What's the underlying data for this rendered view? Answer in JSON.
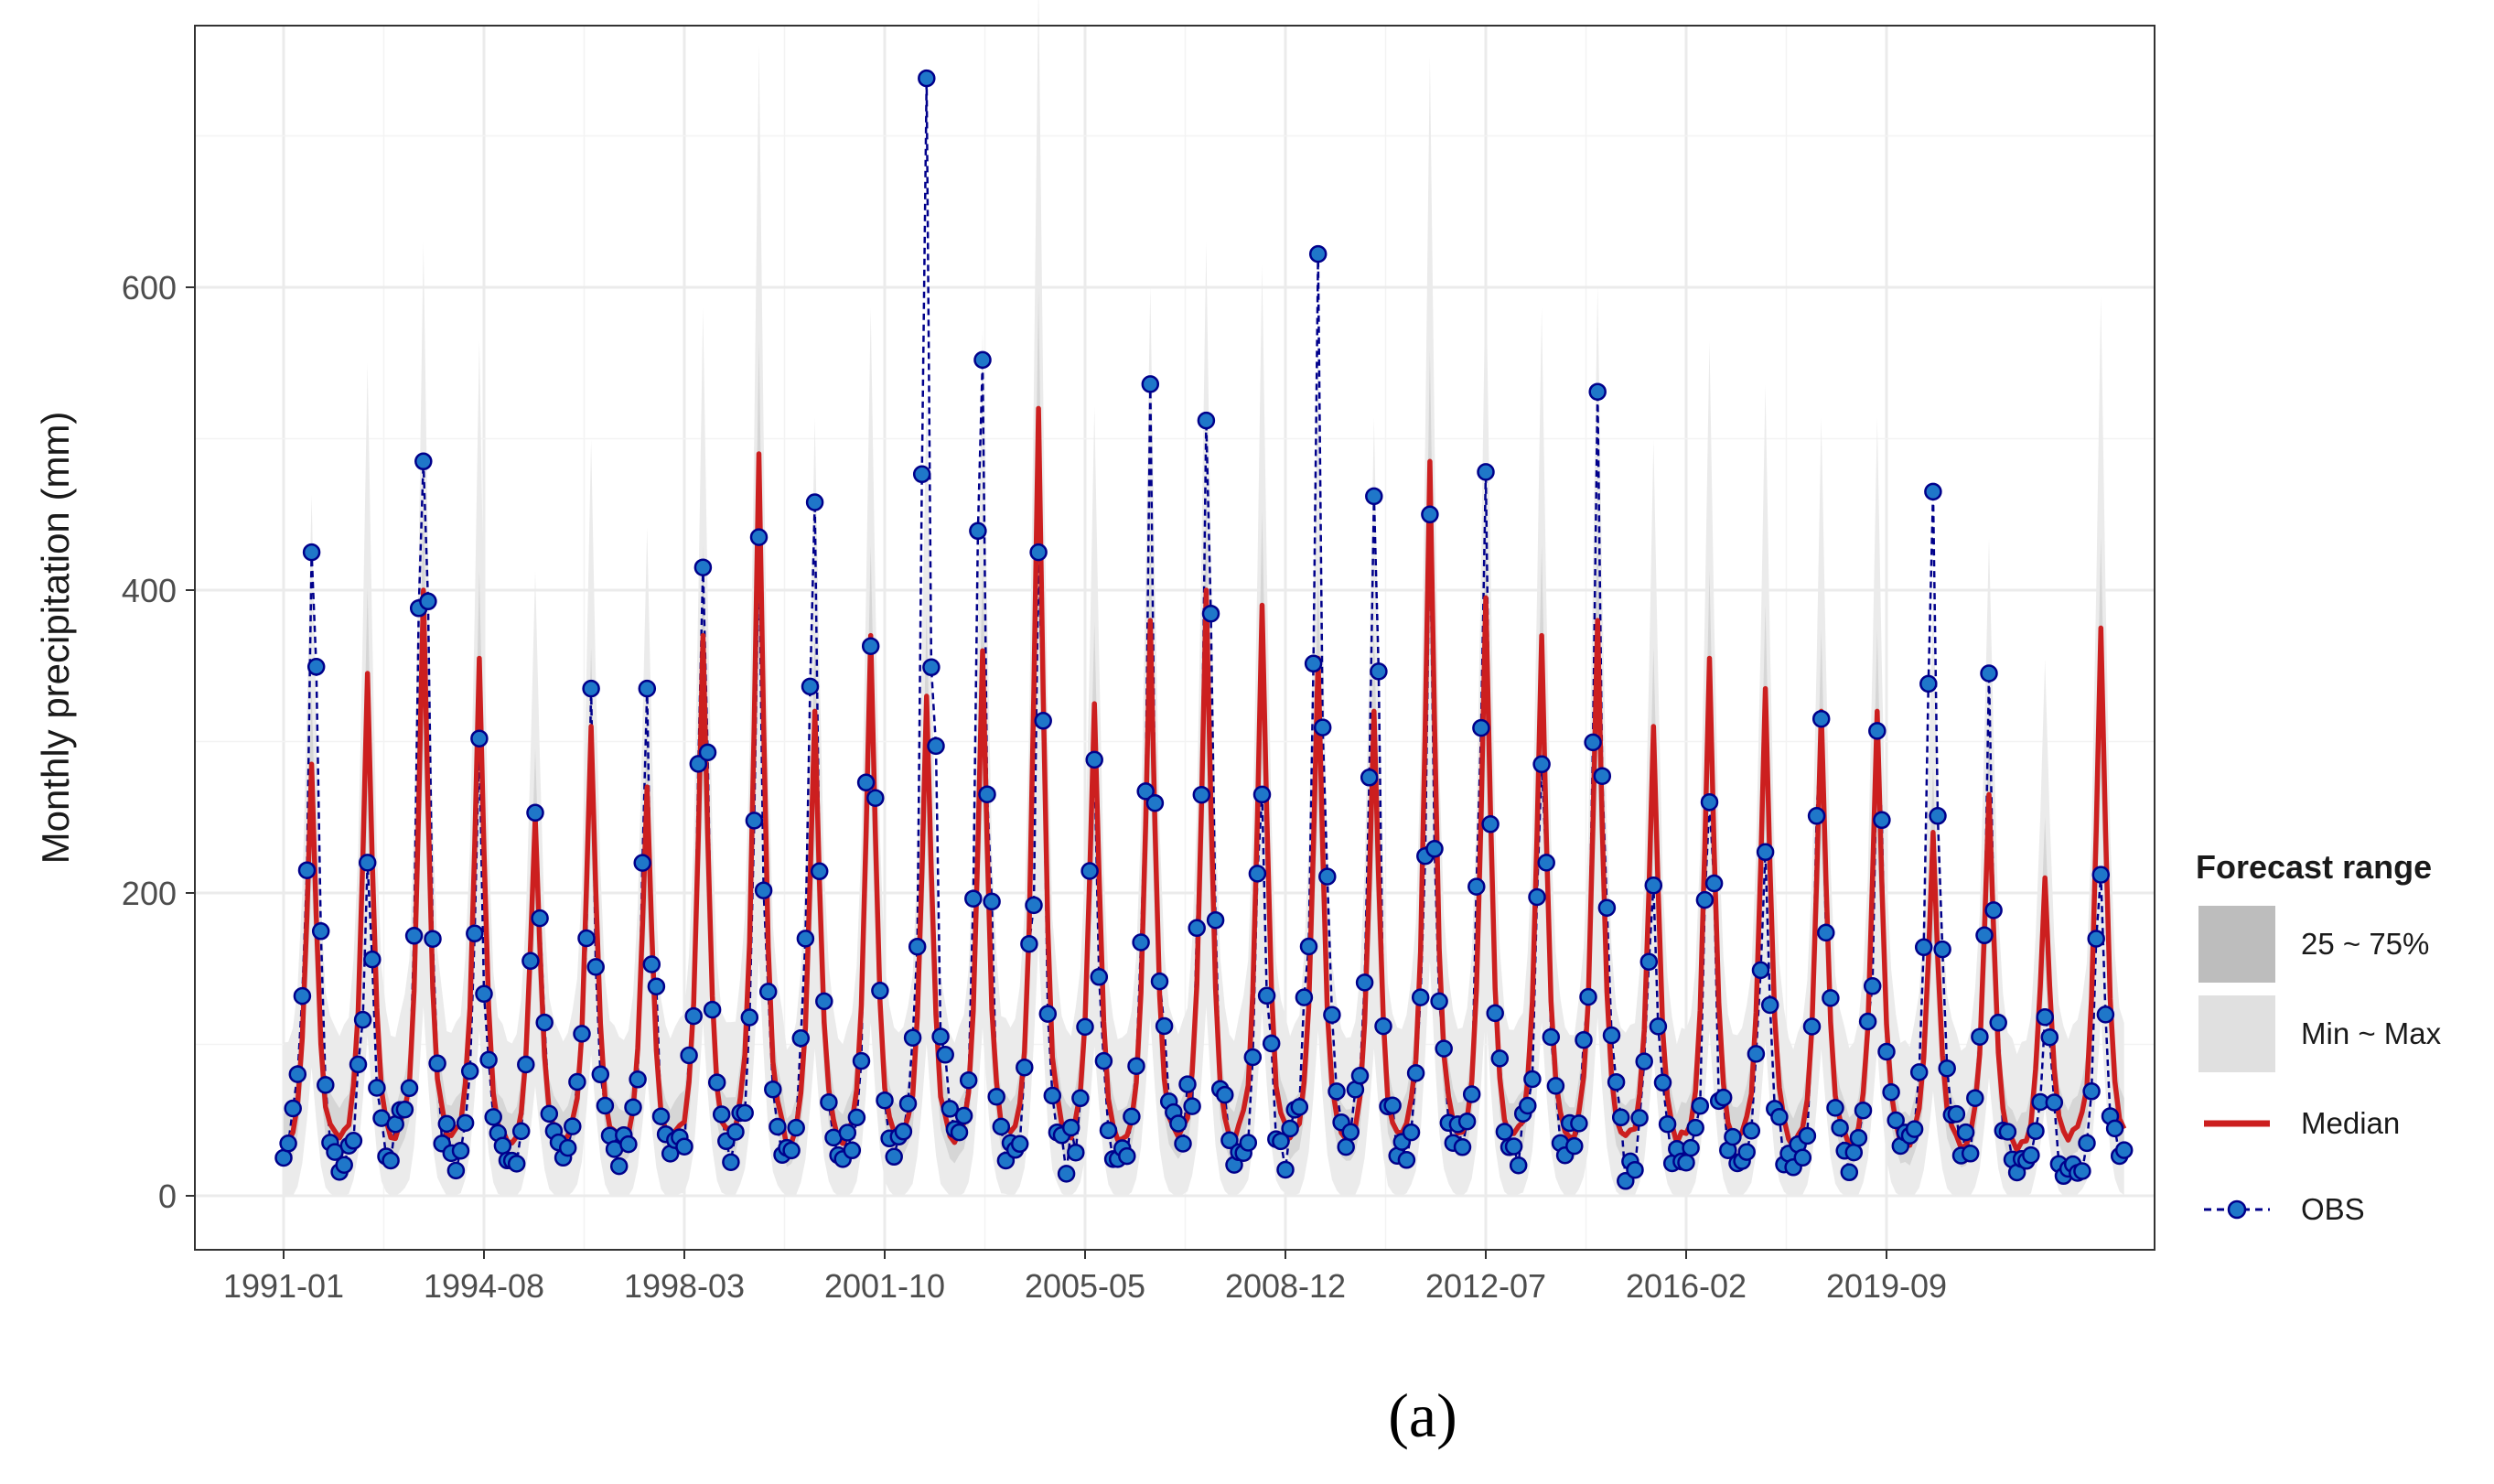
{
  "chart_data": {
    "type": "line",
    "ylabel": "Monthly precipitation (mm)",
    "xlabel": "",
    "caption": "(a)",
    "x_start": "1991-01",
    "x_end": "2023-12",
    "x_ticks": [
      "1991-01",
      "1994-08",
      "1998-03",
      "2001-10",
      "2005-05",
      "2008-12",
      "2012-07",
      "2016-02",
      "2019-09"
    ],
    "y_ticks": [
      0,
      200,
      400,
      600
    ],
    "ylim": [
      -35,
      775
    ],
    "grid": true,
    "legend": {
      "title": "Forecast range",
      "position": "right",
      "items": [
        {
          "label": "25 ~ 75%",
          "kind": "band",
          "color": "#bdbdbd"
        },
        {
          "label": "Min ~ Max",
          "kind": "band",
          "color": "#e0e0e0"
        },
        {
          "label": "Median",
          "kind": "line",
          "color": "#cc1f1f"
        },
        {
          "label": "OBS",
          "kind": "point-line",
          "color": "#00008b",
          "fill": "#1f77c9"
        }
      ]
    },
    "series": [
      {
        "name": "Min ~ Max",
        "type": "band",
        "color": "#ebebeb",
        "x": [
          "1991-01",
          "1991-02",
          "1991-03",
          "1991-04",
          "1991-05",
          "1991-06",
          "1991-07",
          "1991-08",
          "1991-09",
          "1991-10",
          "1991-11",
          "1991-12",
          "1993-07",
          "1994-08",
          "1998-01",
          "2002-07",
          "2005-01",
          "2008-07",
          "2012-02",
          "2015-07",
          "2017-08",
          "2020-06",
          "2023-07",
          "2023-12"
        ],
        "values": [
          120,
          180,
          260,
          360,
          420,
          410,
          380,
          300,
          200,
          140,
          110,
          100,
          560,
          580,
          590,
          850,
          610,
          640,
          570,
          610,
          720,
          450,
          560,
          200
        ]
      },
      {
        "name": "25 ~ 75%",
        "type": "band",
        "color": "#d6d6d6",
        "x": [
          "1992-07",
          "1996-07",
          "2002-07",
          "2004-07",
          "2008-07",
          "2013-07",
          "2017-07",
          "2021-07"
        ],
        "values": [
          300,
          290,
          420,
          390,
          360,
          380,
          340,
          300
        ]
      },
      {
        "name": "Median",
        "type": "line",
        "color": "#cc1f1f",
        "peaks": [
          {
            "x": "1991-07",
            "y": 285
          },
          {
            "x": "1992-07",
            "y": 345
          },
          {
            "x": "1993-07",
            "y": 400
          },
          {
            "x": "1994-08",
            "y": 355
          },
          {
            "x": "1995-07",
            "y": 250
          },
          {
            "x": "1996-07",
            "y": 310
          },
          {
            "x": "1997-07",
            "y": 270
          },
          {
            "x": "1998-07",
            "y": 370
          },
          {
            "x": "1999-07",
            "y": 490
          },
          {
            "x": "2000-07",
            "y": 320
          },
          {
            "x": "2001-07",
            "y": 370
          },
          {
            "x": "2002-07",
            "y": 330
          },
          {
            "x": "2003-07",
            "y": 360
          },
          {
            "x": "2004-07",
            "y": 520
          },
          {
            "x": "2005-07",
            "y": 325
          },
          {
            "x": "2006-07",
            "y": 380
          },
          {
            "x": "2007-07",
            "y": 400
          },
          {
            "x": "2008-07",
            "y": 390
          },
          {
            "x": "2009-07",
            "y": 355
          },
          {
            "x": "2010-07",
            "y": 320
          },
          {
            "x": "2011-07",
            "y": 485
          },
          {
            "x": "2012-07",
            "y": 395
          },
          {
            "x": "2013-07",
            "y": 370
          },
          {
            "x": "2014-07",
            "y": 380
          },
          {
            "x": "2015-07",
            "y": 310
          },
          {
            "x": "2016-07",
            "y": 355
          },
          {
            "x": "2017-07",
            "y": 335
          },
          {
            "x": "2018-07",
            "y": 320
          },
          {
            "x": "2019-07",
            "y": 320
          },
          {
            "x": "2020-07",
            "y": 240
          },
          {
            "x": "2021-07",
            "y": 265
          },
          {
            "x": "2022-07",
            "y": 210
          },
          {
            "x": "2023-07",
            "y": 375
          }
        ]
      },
      {
        "name": "OBS",
        "type": "point-line",
        "color": "#00008b",
        "peaks": [
          {
            "x": "1991-07",
            "y": 425
          },
          {
            "x": "1992-07",
            "y": 220
          },
          {
            "x": "1993-07",
            "y": 485
          },
          {
            "x": "1994-08",
            "y": 302
          },
          {
            "x": "1995-07",
            "y": 253
          },
          {
            "x": "1996-07",
            "y": 335
          },
          {
            "x": "1997-07",
            "y": 335
          },
          {
            "x": "1998-07",
            "y": 415
          },
          {
            "x": "1999-07",
            "y": 435
          },
          {
            "x": "2000-07",
            "y": 458
          },
          {
            "x": "2001-07",
            "y": 363
          },
          {
            "x": "2002-07",
            "y": 738
          },
          {
            "x": "2003-07",
            "y": 552
          },
          {
            "x": "2004-07",
            "y": 425
          },
          {
            "x": "2005-07",
            "y": 288
          },
          {
            "x": "2006-07",
            "y": 536
          },
          {
            "x": "2007-07",
            "y": 512
          },
          {
            "x": "2008-07",
            "y": 265
          },
          {
            "x": "2009-07",
            "y": 622
          },
          {
            "x": "2010-07",
            "y": 462
          },
          {
            "x": "2011-07",
            "y": 450
          },
          {
            "x": "2012-07",
            "y": 478
          },
          {
            "x": "2013-07",
            "y": 285
          },
          {
            "x": "2014-07",
            "y": 531
          },
          {
            "x": "2015-07",
            "y": 205
          },
          {
            "x": "2016-07",
            "y": 260
          },
          {
            "x": "2017-07",
            "y": 227
          },
          {
            "x": "2018-07",
            "y": 315
          },
          {
            "x": "2019-07",
            "y": 307
          },
          {
            "x": "2020-07",
            "y": 465
          },
          {
            "x": "2021-07",
            "y": 345
          },
          {
            "x": "2022-07",
            "y": 118
          },
          {
            "x": "2023-07",
            "y": 212
          }
        ]
      }
    ]
  }
}
